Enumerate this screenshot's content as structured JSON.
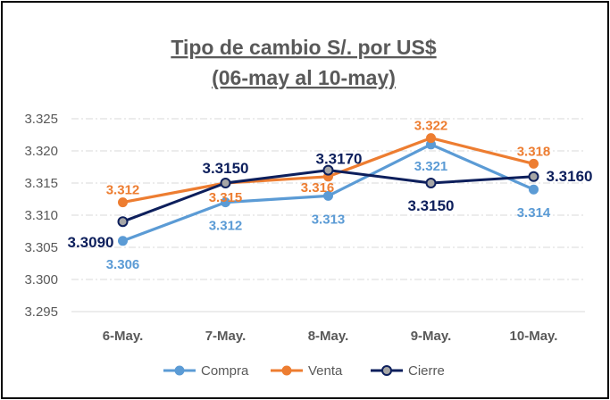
{
  "chart_data": {
    "type": "line",
    "title": "Tipo de cambio S/. por US$",
    "subtitle": "(06-may al 10-may)",
    "categories": [
      "6-May.",
      "7-May.",
      "8-May.",
      "9-May.",
      "10-May."
    ],
    "ylim": [
      3.295,
      3.325
    ],
    "y_ticks": [
      "3.325",
      "3.320",
      "3.315",
      "3.310",
      "3.305",
      "3.300",
      "3.295"
    ],
    "grid": true,
    "legend_position": "bottom",
    "series": [
      {
        "name": "Compra",
        "color": "#5b9bd5",
        "values": [
          3.306,
          3.312,
          3.313,
          3.321,
          3.314
        ],
        "labels": [
          "3.306",
          "3.312",
          "3.313",
          "3.321",
          "3.314"
        ]
      },
      {
        "name": "Venta",
        "color": "#ed7d31",
        "values": [
          3.312,
          3.315,
          3.316,
          3.322,
          3.318
        ],
        "labels": [
          "3.312",
          "3.315",
          "3.316",
          "3.322",
          "3.318"
        ]
      },
      {
        "name": "Cierre",
        "color": "#0d1f5c",
        "values": [
          3.309,
          3.315,
          3.317,
          3.315,
          3.316
        ],
        "labels": [
          "3.3090",
          "3.3150",
          "3.3170",
          "3.3150",
          "3.3160"
        ]
      }
    ]
  }
}
